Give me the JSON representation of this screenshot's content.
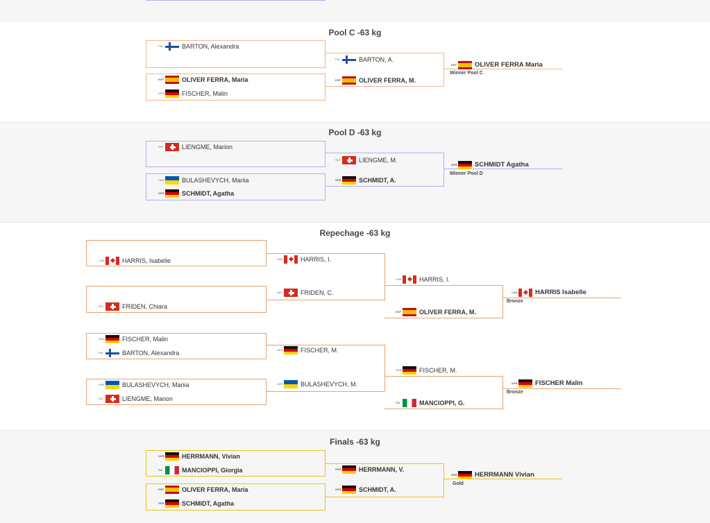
{
  "colors": {
    "pool_c": "#f4b48a",
    "pool_d": "#b0b0ee",
    "repechage": "#e7a26c",
    "finals": "#e3c51a",
    "band": "#f6f6f6"
  },
  "sections": [
    {
      "key": "pool_c",
      "title": "Pool C -63 kg",
      "color": "#f4b48a",
      "band": false,
      "entries": [
        {
          "cc": "FIN",
          "name": "BARTON, Alexandra",
          "bold": false
        },
        {
          "cc": "FIN",
          "name": "BARTON, A.",
          "bold": false
        },
        {
          "cc": "ESP",
          "name": "OLIVER FERRA Maria",
          "bold": true
        },
        {
          "cc": "ESP",
          "name": "OLIVER FERRA, Maria",
          "bold": true
        },
        {
          "cc": "GER",
          "name": "FISCHER, Malin",
          "bold": false
        },
        {
          "cc": "ESP",
          "name": "OLIVER FERRA, M.",
          "bold": true
        }
      ],
      "subs": [
        "Winner Pool C"
      ]
    },
    {
      "key": "pool_d",
      "title": "Pool D -63 kg",
      "color": "#b0b0ee",
      "band": true,
      "entries": [
        {
          "cc": "SUI",
          "name": "LIENGME, Marion",
          "bold": false
        },
        {
          "cc": "SUI",
          "name": "LIENGME, M.",
          "bold": false
        },
        {
          "cc": "GER",
          "name": "SCHMIDT Agatha",
          "bold": true
        },
        {
          "cc": "UKR",
          "name": "BULASHEVYCH, Mariia",
          "bold": false
        },
        {
          "cc": "GER",
          "name": "SCHMIDT, A.",
          "bold": true
        },
        {
          "cc": "GER",
          "name": "SCHMIDT, Agatha",
          "bold": true
        }
      ],
      "subs": [
        "Winner Pool D"
      ]
    },
    {
      "key": "repechage",
      "title": "Repechage -63 kg",
      "color": "#e7a26c",
      "band": false,
      "entries": [
        {
          "cc": "CAN",
          "name": "HARRIS, Isabelle",
          "bold": false
        },
        {
          "cc": "CAN",
          "name": "HARRIS, I.",
          "bold": false
        },
        {
          "cc": "CAN",
          "name": "HARRIS, I.",
          "bold": false
        },
        {
          "cc": "SUI",
          "name": "FRIDEN, C.",
          "bold": false
        },
        {
          "cc": "CAN",
          "name": "HARRIS Isabelle",
          "bold": true
        },
        {
          "cc": "SUI",
          "name": "FRIDEN, Chiara",
          "bold": false
        },
        {
          "cc": "ESP",
          "name": "OLIVER FERRA, M.",
          "bold": true
        },
        {
          "cc": "GER",
          "name": "FISCHER, Malin",
          "bold": false
        },
        {
          "cc": "GER",
          "name": "FISCHER, M.",
          "bold": false
        },
        {
          "cc": "FIN",
          "name": "BARTON, Alexandra",
          "bold": false
        },
        {
          "cc": "GER",
          "name": "FISCHER, M.",
          "bold": false
        },
        {
          "cc": "UKR",
          "name": "BULASHEVYCH, M.",
          "bold": false
        },
        {
          "cc": "GER",
          "name": "FISCHER Malin",
          "bold": true
        },
        {
          "cc": "UKR",
          "name": "BULASHEVYCH, Mariia",
          "bold": false
        },
        {
          "cc": "SUI",
          "name": "LIENGME, Marion",
          "bold": false
        },
        {
          "cc": "ITA",
          "name": "MANCIOPPI, G.",
          "bold": true
        }
      ],
      "subs": [
        "Bronze",
        "Bronze"
      ]
    },
    {
      "key": "finals",
      "title": "Finals -63 kg",
      "color": "#e3c51a",
      "band": true,
      "entries": [
        {
          "cc": "GER",
          "name": "HERRMANN, Vivian",
          "bold": true
        },
        {
          "cc": "ITA",
          "name": "MANCIOPPI, Giorgia",
          "bold": true
        },
        {
          "cc": "GER",
          "name": "HERRMANN, V.",
          "bold": true
        },
        {
          "cc": "GER",
          "name": "HERRMANN Vivian",
          "bold": true
        },
        {
          "cc": "ESP",
          "name": "OLIVER FERRA, Maria",
          "bold": true
        },
        {
          "cc": "GER",
          "name": "SCHMIDT, A.",
          "bold": true
        },
        {
          "cc": "GER",
          "name": "SCHMIDT, Agatha",
          "bold": true
        }
      ],
      "subs": [
        "Gold"
      ]
    }
  ]
}
